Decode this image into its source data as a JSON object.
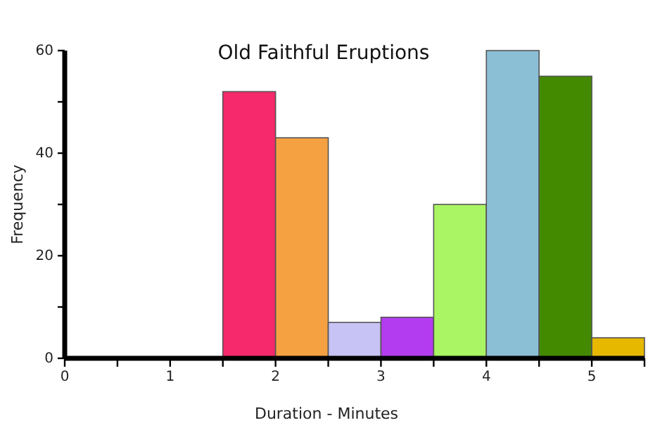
{
  "chart_data": {
    "type": "histogram",
    "title": "Old Faithful Eruptions",
    "xlabel": "Duration - Minutes",
    "ylabel": "Frequency",
    "bins": [
      1.5,
      2,
      2.5,
      3,
      3.5,
      4,
      4.5,
      5,
      5.5
    ],
    "values": [
      52,
      43,
      7,
      8,
      30,
      60,
      55,
      4
    ],
    "colors": [
      "#f5296b",
      "#f5a142",
      "#c8c3f5",
      "#b43cf0",
      "#aaf564",
      "#8bbfd6",
      "#448a00",
      "#e6b800"
    ],
    "xlim": [
      0,
      5.5
    ],
    "xticks": [
      0,
      {
        "value": 0.5,
        "label": null
      },
      1,
      {
        "value": 1.5,
        "label": null
      },
      2,
      {
        "value": 2.5,
        "label": null
      },
      3,
      {
        "value": 3.5,
        "label": null
      },
      4,
      {
        "value": 4.5,
        "label": null
      },
      5,
      {
        "value": 5.5,
        "label": null
      }
    ],
    "ylim": [
      0,
      60
    ],
    "yticks": [
      0,
      {
        "value": 10,
        "label": null
      },
      20,
      {
        "value": 30,
        "label": null
      },
      40,
      {
        "value": 50,
        "label": null
      },
      60
    ]
  }
}
